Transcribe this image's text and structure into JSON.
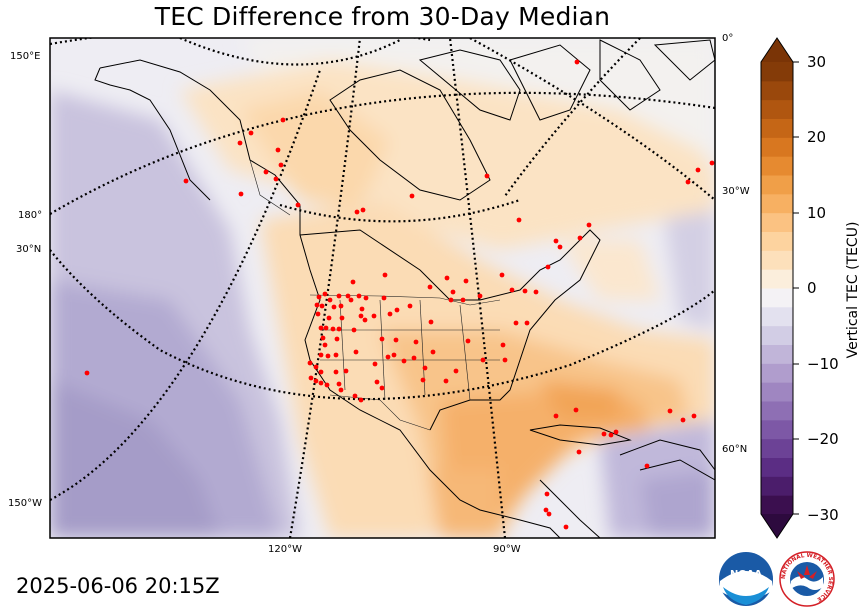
{
  "title": "TEC Difference from 30-Day Median",
  "timestamp": "2025-06-06 20:15Z",
  "colorbar": {
    "label": "Vertical TEC (TECU)",
    "ticks": [
      "30",
      "20",
      "10",
      "0",
      "−10",
      "−20",
      "−30"
    ],
    "range": [
      -30,
      30
    ],
    "extend": "both"
  },
  "map": {
    "projection": "polar stereographic (North America)",
    "lat_labels": [
      "0°",
      "30°N",
      "60°N",
      "30°W",
      "180°",
      "150°E",
      "150°W"
    ],
    "lon_labels": [
      "120°W",
      "90°W"
    ],
    "markers": "red dots at ground receiver stations",
    "colors": {
      "positive": "#f5a54a",
      "negative": "#9b90c4",
      "neutral": "#f5f3f0",
      "station": "#ff0000"
    }
  },
  "logos": {
    "noaa": "NOAA",
    "nws_ring": "NATIONAL WEATHER SERVICE"
  }
}
